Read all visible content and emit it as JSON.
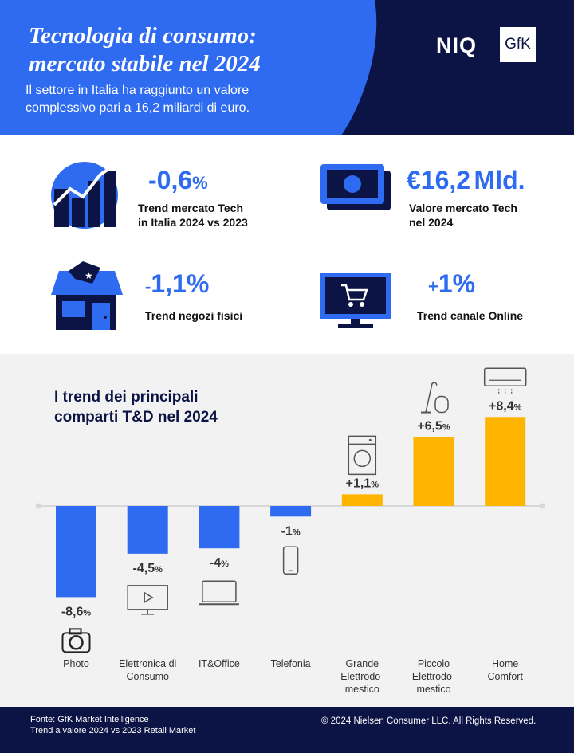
{
  "header": {
    "title_line1": "Tecnologia di consumo:",
    "title_line2": "mercato stabile nel 2024",
    "subtitle": "Il settore in Italia ha raggiunto un valore complessivo pari a 16,2 miliardi di euro.",
    "logo_niq": "NIQ",
    "logo_gfk": "GfK"
  },
  "kpis": {
    "tech_trend": {
      "sign": "-",
      "value": "0,6",
      "unit": "%",
      "label_line1": "Trend mercato Tech",
      "label_line2": "in Italia 2024 vs 2023"
    },
    "market_value": {
      "value": "€16,2",
      "unit": "Mld.",
      "label_line1": "Valore mercato Tech",
      "label_line2": "nel 2024"
    },
    "physical_stores": {
      "sign": "-",
      "value": "1,1",
      "unit": "%",
      "label": "Trend negozi fisici"
    },
    "online": {
      "sign": "+",
      "value": "1",
      "unit": "%",
      "label": "Trend canale Online"
    }
  },
  "chart_data": {
    "type": "bar",
    "title_line1": "I trend dei principali",
    "title_line2": "comparti T&D nel 2024",
    "categories": [
      [
        "Photo"
      ],
      [
        "Elettronica di",
        "Consumo"
      ],
      [
        "IT&Office"
      ],
      [
        "Telefonia"
      ],
      [
        "Grande",
        "Elettrodo-",
        "mestico"
      ],
      [
        "Piccolo",
        "Elettrodo-",
        "mestico"
      ],
      [
        "Home",
        "Comfort"
      ]
    ],
    "values": [
      -8.6,
      -4.5,
      -4.0,
      -1.0,
      1.1,
      6.5,
      8.4
    ],
    "value_labels": [
      {
        "num": "-8,6",
        "unit": "%"
      },
      {
        "num": "-4,5",
        "unit": "%"
      },
      {
        "num": "-4",
        "unit": "%"
      },
      {
        "num": "-1",
        "unit": "%"
      },
      {
        "num": "+1,1",
        "unit": "%"
      },
      {
        "num": "+6,5",
        "unit": "%"
      },
      {
        "num": "+8,4",
        "unit": "%"
      }
    ],
    "icons": [
      "camera-icon",
      "tv-icon",
      "laptop-icon",
      "smartphone-icon",
      "washing-machine-icon",
      "vacuum-cleaner-icon",
      "air-conditioner-icon"
    ],
    "negative_color": "#2e6bf0",
    "positive_color": "#ffb400",
    "ylim": [
      -9,
      9
    ]
  },
  "colors": {
    "navy": "#0c1445",
    "blue": "#2e6bf0",
    "yellow": "#ffb400"
  },
  "footer": {
    "source_line1": "Fonte: GfK Market Intelligence",
    "source_line2": "Trend a valore 2024 vs 2023 Retail Market",
    "copyright": "© 2024 Nielsen Consumer LLC. All Rights Reserved."
  }
}
